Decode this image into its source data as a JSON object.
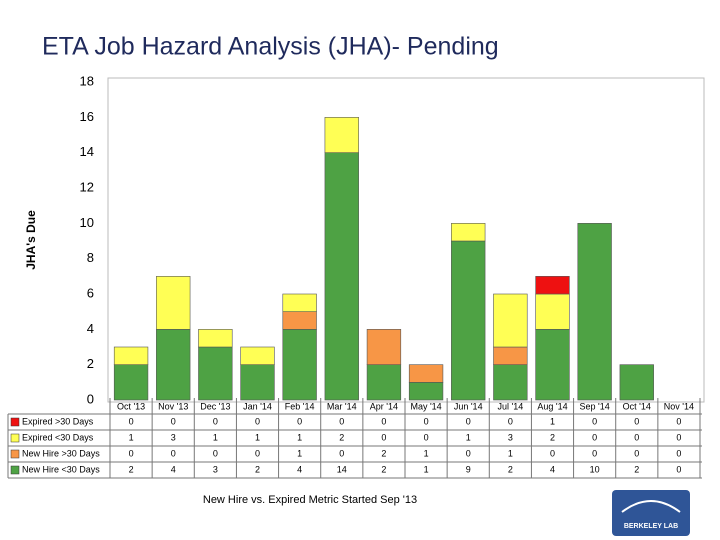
{
  "chart_data": {
    "type": "stacked-bar",
    "title": "ETA Job Hazard Analysis (JHA)- Pending",
    "y_label": "JHA's Due",
    "categories": [
      "Oct '13",
      "Nov '13",
      "Dec '13",
      "Jan '14",
      "Feb '14",
      "Mar '14",
      "Apr '14",
      "May '14",
      "Jun '14",
      "Jul '14",
      "Aug '14",
      "Sep '14",
      "Oct '14",
      "Nov '14"
    ],
    "series": [
      {
        "name": "Expired >30 Days",
        "color": "#ee1111",
        "values": [
          0,
          0,
          0,
          0,
          0,
          0,
          0,
          0,
          0,
          0,
          1,
          0,
          0,
          0
        ]
      },
      {
        "name": "Expired <30 Days",
        "color": "#ffff55",
        "values": [
          1,
          3,
          1,
          1,
          1,
          2,
          0,
          0,
          1,
          3,
          2,
          0,
          0,
          0
        ]
      },
      {
        "name": "New Hire >30 Days",
        "color": "#f79646",
        "values": [
          0,
          0,
          0,
          0,
          1,
          0,
          2,
          1,
          0,
          1,
          0,
          0,
          0,
          0
        ]
      },
      {
        "name": "New Hire <30 Days",
        "color": "#4ea244",
        "values": [
          2,
          4,
          3,
          2,
          4,
          14,
          2,
          1,
          9,
          2,
          4,
          10,
          2,
          0
        ]
      }
    ],
    "ylim": [
      0,
      18
    ],
    "yticks": [
      0,
      2,
      4,
      6,
      8,
      10,
      12,
      14,
      16,
      18
    ],
    "grid": false,
    "footnote": "New Hire vs. Expired Metric Started Sep '13"
  },
  "logo": "BERKELEY LAB"
}
